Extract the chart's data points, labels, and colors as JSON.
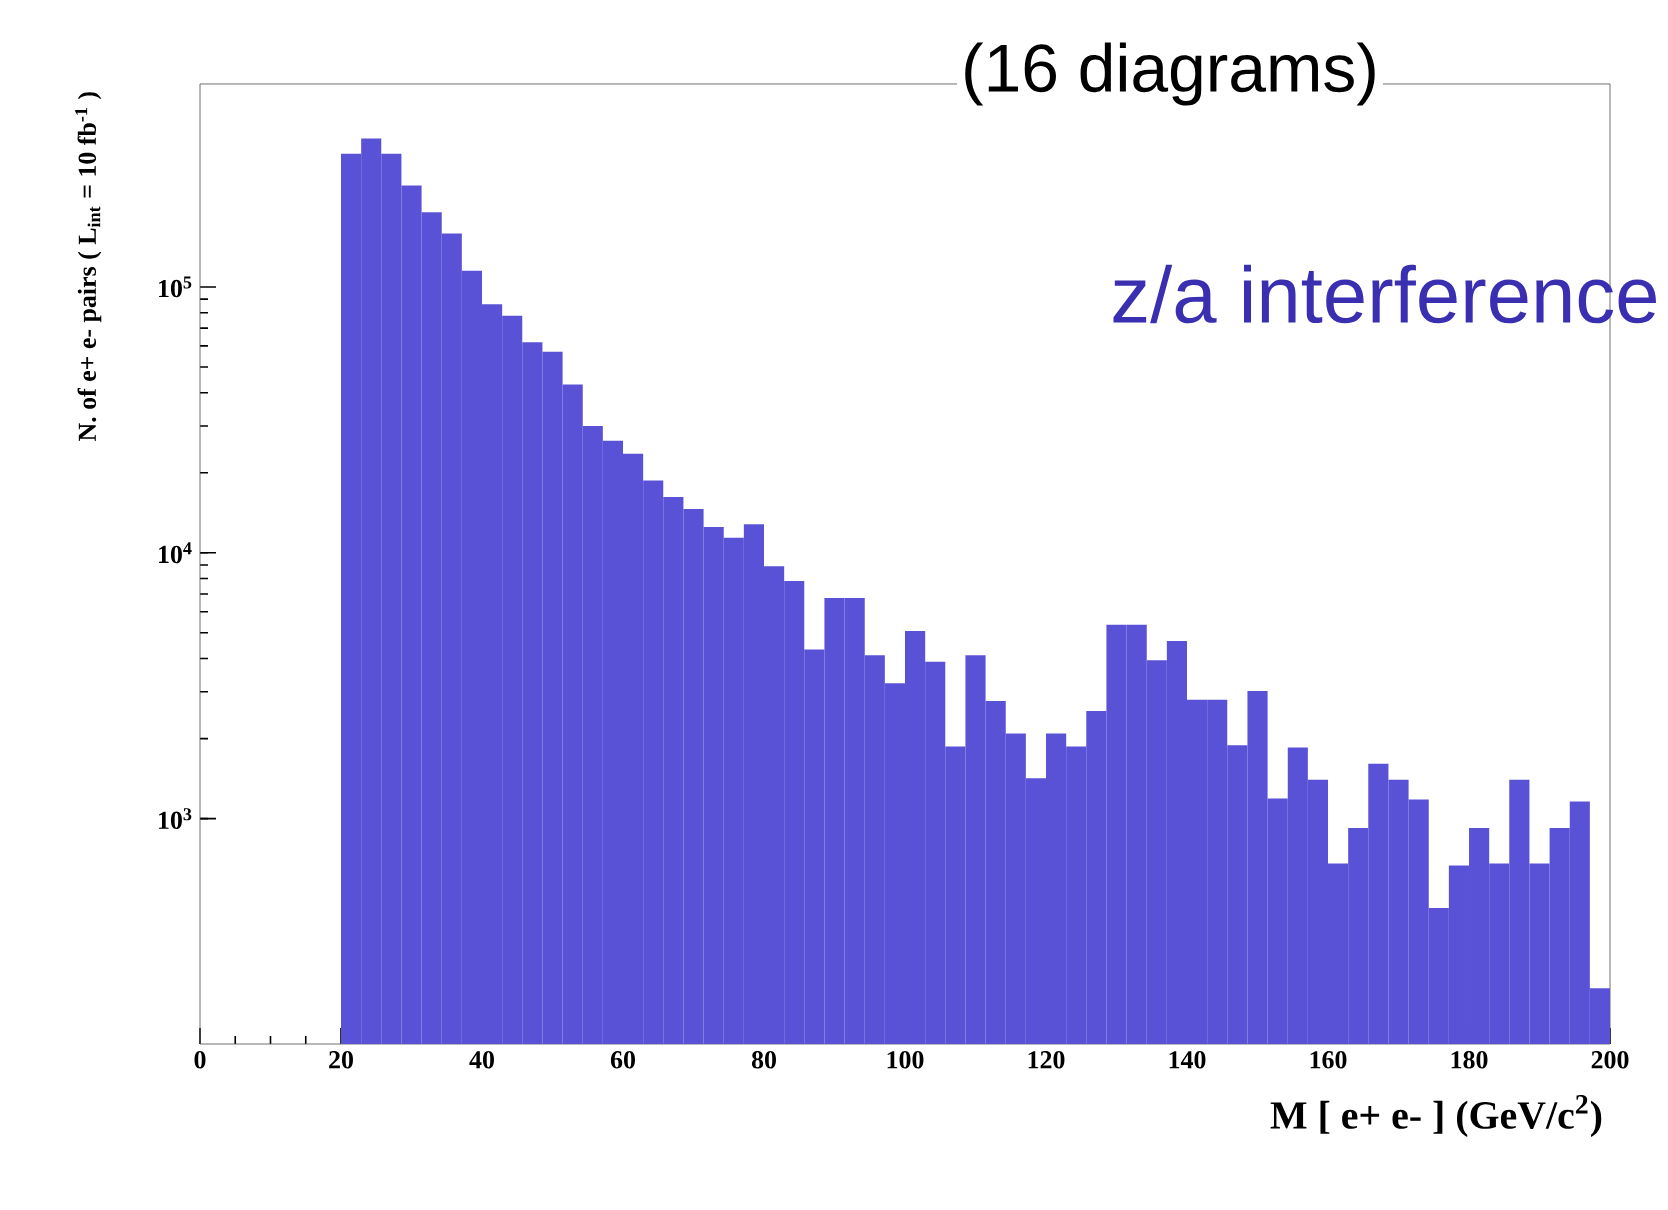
{
  "chart_data": {
    "type": "histogram",
    "xlabel": "M [ e+ e- ] (GeV/c$^{2}$)",
    "ylabel": "N. of e+ e- pairs ( L$_{int}$ = 10 fb$^{-1}$ )",
    "annotations": [
      "(16 diagrams)",
      "z/a interference"
    ],
    "color": "#5a52d6",
    "log": "y",
    "bins": [
      20,
      22.86,
      25.71,
      28.57,
      31.43,
      34.29,
      37.14,
      40,
      42.86,
      45.71,
      48.57,
      51.43,
      54.29,
      57.14,
      60,
      62.86,
      65.71,
      68.57,
      71.43,
      74.29,
      77.14,
      80,
      82.86,
      85.71,
      88.57,
      91.43,
      94.29,
      97.14,
      100,
      102.86,
      105.71,
      108.57,
      111.43,
      114.29,
      117.14,
      120,
      122.86,
      125.71,
      128.57,
      131.43,
      134.29,
      137.14,
      140,
      142.86,
      145.71,
      148.57,
      151.43,
      154.29,
      157.14,
      160,
      162.86,
      165.71,
      168.57,
      171.43,
      174.29,
      177.14,
      180,
      182.86,
      185.71,
      188.57,
      191.43,
      194.29,
      197.14,
      200
    ],
    "values": [
      317000,
      362000,
      317000,
      241000,
      191000,
      159000,
      115000,
      86000,
      78000,
      62000,
      57000,
      43000,
      30000,
      26400,
      23600,
      18700,
      16200,
      14600,
      12500,
      11400,
      12800,
      8900,
      7840,
      4330,
      6760,
      6760,
      4120,
      3230,
      5080,
      3890,
      1870,
      4120,
      2770,
      2090,
      1420,
      2090,
      1870,
      2540,
      5360,
      5360,
      3940,
      4660,
      2800,
      2800,
      1890,
      3020,
      1190,
      1850,
      1400,
      678,
      922,
      1610,
      1400,
      1180,
      461,
      667,
      922,
      678,
      1400,
      678,
      922,
      1160,
      230
    ],
    "xlim": [
      0,
      200
    ],
    "ylim": [
      142,
      580000
    ],
    "xticks": [
      0,
      20,
      40,
      60,
      80,
      100,
      120,
      140,
      160,
      180,
      200
    ],
    "yticks": [
      {
        "value": 1000,
        "label": "10$^{3}$"
      },
      {
        "value": 10000,
        "label": "10$^{4}$"
      },
      {
        "value": 100000,
        "label": "10$^{5}$"
      }
    ]
  }
}
